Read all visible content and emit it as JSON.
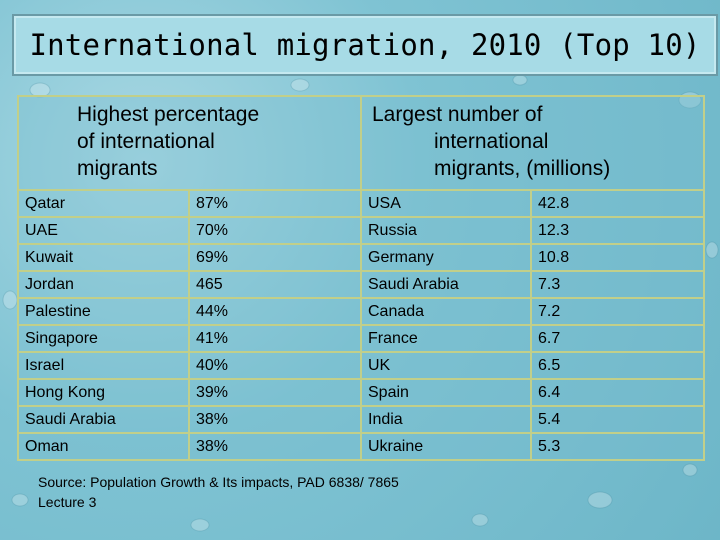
{
  "title": "International migration, 2010 (Top 10)",
  "header": {
    "left_lines": [
      "Highest percentage",
      "of international",
      "migrants"
    ],
    "right_lines": [
      "Largest number of",
      "international",
      "migrants, (millions)"
    ]
  },
  "rows": [
    {
      "country_pct": "Qatar",
      "pct": "87%",
      "country_num": "USA",
      "num": "42.8"
    },
    {
      "country_pct": "UAE",
      "pct": "70%",
      "country_num": "Russia",
      "num": "12.3"
    },
    {
      "country_pct": "Kuwait",
      "pct": "69%",
      "country_num": "Germany",
      "num": "10.8"
    },
    {
      "country_pct": "Jordan",
      "pct": "465",
      "country_num": "Saudi Arabia",
      "num": "7.3"
    },
    {
      "country_pct": "Palestine",
      "pct": "44%",
      "country_num": "Canada",
      "num": "7.2"
    },
    {
      "country_pct": "Singapore",
      "pct": "41%",
      "country_num": "France",
      "num": "6.7"
    },
    {
      "country_pct": "Israel",
      "pct": "40%",
      "country_num": "UK",
      "num": "6.5"
    },
    {
      "country_pct": "Hong Kong",
      "pct": "39%",
      "country_num": "Spain",
      "num": "6.4"
    },
    {
      "country_pct": "Saudi Arabia",
      "pct": "38%",
      "country_num": "India",
      "num": "5.4"
    },
    {
      "country_pct": "Oman",
      "pct": "38%",
      "country_num": "Ukraine",
      "num": "5.3"
    }
  ],
  "source_lines": [
    "Source: Population Growth & Its impacts, PAD 6838/ 7865",
    "Lecture 3"
  ]
}
